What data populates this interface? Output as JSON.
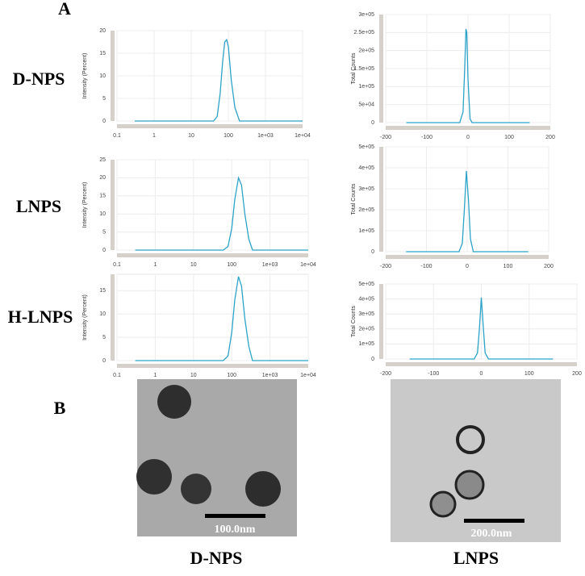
{
  "panel_labels": [
    "A",
    "B"
  ],
  "row_labels": [
    "D-NPS",
    "LNPS",
    "H-LNPS"
  ],
  "images": [
    {
      "scale_bar": "100.0nm",
      "caption": "D-NPS"
    },
    {
      "scale_bar": "200.0nm",
      "caption": "LNPS"
    }
  ],
  "chart_data": [
    {
      "type": "line",
      "xscale": "log",
      "ylabel": "Intensity (Percent)",
      "color": "#2ba3c8",
      "grid": true,
      "x": [
        0.3,
        40,
        50,
        60,
        70,
        80,
        90,
        100,
        120,
        150,
        200,
        10000
      ],
      "values": [
        0,
        0,
        1,
        6,
        13,
        17.5,
        18,
        16.5,
        9,
        3,
        0,
        0
      ],
      "xlim": [
        0.1,
        10000
      ],
      "xticks": [
        0.1,
        1,
        10,
        100,
        {
          "value": 1000,
          "label": "1e+03"
        },
        {
          "value": 10000,
          "label": "1e+04"
        }
      ],
      "ylim": [
        0,
        20
      ],
      "yticks": [
        0,
        5,
        10,
        15,
        20
      ]
    },
    {
      "type": "line",
      "xscale": "log",
      "ylabel": "Intensity (Percent)",
      "color": "#2ba3c8",
      "grid": true,
      "x": [
        0.3,
        60,
        80,
        100,
        120,
        150,
        180,
        220,
        280,
        350,
        10000
      ],
      "values": [
        0,
        0,
        1,
        6,
        14,
        20,
        18,
        10,
        3,
        0,
        0
      ],
      "xlim": [
        0.1,
        10000
      ],
      "xticks": [
        0.1,
        1,
        10,
        100,
        {
          "value": 1000,
          "label": "1e+03"
        },
        {
          "value": 10000,
          "label": "1e+04"
        }
      ],
      "ylim": [
        0,
        25
      ],
      "yticks": [
        0,
        5,
        10,
        15,
        20,
        25
      ]
    },
    {
      "type": "line",
      "xscale": "log",
      "ylabel": "Intensity (Percent)",
      "color": "#2ba3c8",
      "grid": true,
      "x": [
        0.3,
        60,
        80,
        100,
        120,
        150,
        180,
        220,
        280,
        350,
        10000
      ],
      "values": [
        0,
        0,
        1,
        6,
        13,
        18,
        16,
        9,
        3,
        0,
        0
      ],
      "xlim": [
        0.1,
        10000
      ],
      "xticks": [
        0.1,
        1,
        10,
        100,
        {
          "value": 1000,
          "label": "1e+03"
        },
        {
          "value": 10000,
          "label": "1e+04"
        }
      ],
      "ylim": [
        0,
        18.5
      ],
      "yticks": [
        0,
        5,
        10,
        15
      ]
    },
    {
      "type": "line",
      "xscale": "linear",
      "ylabel": "Total Counts",
      "color": "#2ba3c8",
      "grid": true,
      "x": [
        -150,
        -20,
        -12,
        -8,
        -5,
        -3,
        0,
        5,
        10,
        150
      ],
      "values": [
        0,
        0,
        30000,
        150000,
        260000,
        250000,
        120000,
        10000,
        0,
        0
      ],
      "xlim": [
        -200,
        200
      ],
      "xticks": [
        -200,
        -100,
        0,
        100,
        200
      ],
      "ylim": [
        0,
        300000
      ],
      "yticks": [
        0,
        {
          "value": 50000,
          "label": "5e+04"
        },
        {
          "value": 100000,
          "label": "1e+05"
        },
        {
          "value": 150000,
          "label": "1.5e+05"
        },
        {
          "value": 200000,
          "label": "2e+05"
        },
        {
          "value": 250000,
          "label": "2.5e+05"
        },
        {
          "value": 300000,
          "label": "3e+05"
        }
      ]
    },
    {
      "type": "line",
      "xscale": "linear",
      "ylabel": "Total Counts",
      "color": "#2ba3c8",
      "grid": true,
      "x": [
        -150,
        -20,
        -12,
        -7,
        -2,
        3,
        8,
        15,
        150
      ],
      "values": [
        0,
        0,
        40000,
        200000,
        385000,
        250000,
        60000,
        0,
        0
      ],
      "xlim": [
        -200,
        200
      ],
      "xticks": [
        -200,
        -100,
        0,
        100,
        200
      ],
      "ylim": [
        0,
        500000
      ],
      "yticks": [
        0,
        {
          "value": 100000,
          "label": "1e+05"
        },
        {
          "value": 200000,
          "label": "2e+05"
        },
        {
          "value": 300000,
          "label": "3e+05"
        },
        {
          "value": 400000,
          "label": "4e+05"
        },
        {
          "value": 500000,
          "label": "5e+05"
        }
      ]
    },
    {
      "type": "line",
      "xscale": "linear",
      "ylabel": "Total Counts",
      "color": "#2ba3c8",
      "grid": true,
      "x": [
        -150,
        -15,
        -8,
        -4,
        0,
        4,
        8,
        15,
        150
      ],
      "values": [
        0,
        0,
        40000,
        200000,
        410000,
        220000,
        40000,
        0,
        0
      ],
      "xlim": [
        -200,
        200
      ],
      "xticks": [
        -200,
        -100,
        0,
        100,
        200
      ],
      "ylim": [
        0,
        500000
      ],
      "yticks": [
        0,
        {
          "value": 100000,
          "label": "1e+05"
        },
        {
          "value": 200000,
          "label": "2e+05"
        },
        {
          "value": 300000,
          "label": "3e+05"
        },
        {
          "value": 400000,
          "label": "4e+05"
        },
        {
          "value": 500000,
          "label": "5e+05"
        }
      ]
    }
  ]
}
